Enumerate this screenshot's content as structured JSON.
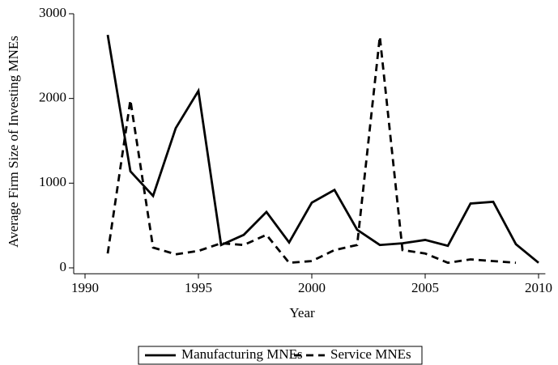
{
  "chart_data": {
    "type": "line",
    "x_label": "Year",
    "y_label": "Average Firm Size of Investing MNEs",
    "x": [
      1991,
      1992,
      1993,
      1994,
      1995,
      1996,
      1997,
      1998,
      1999,
      2000,
      2001,
      2002,
      2003,
      2004,
      2005,
      2006,
      2007,
      2008,
      2009,
      2010
    ],
    "series": [
      {
        "name": "Manufacturing MNEs",
        "color": "#000000",
        "style": "solid",
        "values": [
          2750,
          1140,
          850,
          1650,
          2090,
          270,
          390,
          660,
          300,
          770,
          920,
          450,
          270,
          290,
          330,
          260,
          760,
          780,
          280,
          60
        ]
      },
      {
        "name": "Service MNEs",
        "color": "#000000",
        "style": "dashed",
        "values": [
          170,
          1980,
          240,
          160,
          200,
          290,
          270,
          390,
          60,
          80,
          210,
          270,
          2730,
          210,
          170,
          60,
          100,
          80,
          60,
          null
        ]
      }
    ],
    "xlim": [
      1989.5,
      2010.3
    ],
    "xticks": [
      1990,
      1995,
      2000,
      2005,
      2010
    ],
    "ylim": [
      -70,
      3000
    ],
    "yticks": [
      0,
      1000,
      2000,
      3000
    ],
    "legend": "bottom"
  }
}
